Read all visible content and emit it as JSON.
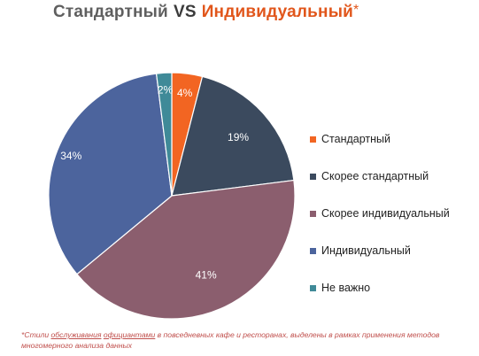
{
  "title": {
    "part1": "Стандартный",
    "vs": "VS",
    "part2": "Индивидуальный",
    "star": "*"
  },
  "chart_data": {
    "type": "pie",
    "title": "Стандартный VS Индивидуальный*",
    "start_angle_deg": 0,
    "direction": "clockwise",
    "legend_position": "right",
    "slices": [
      {
        "name": "Стандартный",
        "value": 4,
        "label": "4%",
        "color": "#f26522"
      },
      {
        "name": "Скорее стандартный",
        "value": 19,
        "label": "19%",
        "color": "#3b4a5e"
      },
      {
        "name": "Скорее индивидуальный",
        "value": 41,
        "label": "41%",
        "color": "#8b5e6e"
      },
      {
        "name": "Индивидуальный",
        "value": 34,
        "label": "34%",
        "color": "#4c649d"
      },
      {
        "name": "Не важно",
        "value": 2,
        "label": "2%",
        "color": "#3f8a98"
      }
    ]
  },
  "footnote": {
    "star": "*",
    "pre": "Стили ",
    "u1": "обслуживания",
    "gap": "  ",
    "u2": "официантами",
    "post": " в повседневных кафе и ресторанах, выделены в рамках применения методов многомерного анализа данных"
  }
}
